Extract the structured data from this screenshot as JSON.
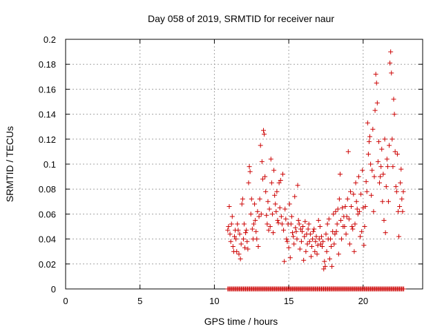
{
  "chart_data": {
    "type": "scatter",
    "title": "Day 058 of 2019, SRMTID for receiver naur",
    "xlabel": "GPS time / hours",
    "ylabel": "SRMTID / TECUs",
    "xlim": [
      0,
      24
    ],
    "ylim": [
      0,
      0.2
    ],
    "xticks": [
      0,
      5,
      10,
      15,
      20
    ],
    "xtick_labels": [
      "0",
      "5",
      "10",
      "15",
      "20"
    ],
    "yticks": [
      0,
      0.02,
      0.04,
      0.06,
      0.08,
      0.1,
      0.12,
      0.14,
      0.16,
      0.18,
      0.2
    ],
    "ytick_labels": [
      "0",
      "0.02",
      "0.04",
      "0.06",
      "0.08",
      "0.1",
      "0.12",
      "0.14",
      "0.16",
      "0.18",
      "0.2"
    ],
    "grid": true,
    "marker": "+",
    "series_color": "#cc0000",
    "series": [
      {
        "name": "SRMTID",
        "points": [
          [
            10.9,
            0.047
          ],
          [
            10.95,
            0.05
          ],
          [
            11.0,
            0.066
          ],
          [
            11.05,
            0.044
          ],
          [
            11.1,
            0.038
          ],
          [
            11.15,
            0.052
          ],
          [
            11.2,
            0.058
          ],
          [
            11.25,
            0.034
          ],
          [
            11.3,
            0.03
          ],
          [
            11.35,
            0.042
          ],
          [
            11.4,
            0.047
          ],
          [
            11.45,
            0.04
          ],
          [
            11.5,
            0.03
          ],
          [
            11.55,
            0.052
          ],
          [
            11.6,
            0.047
          ],
          [
            11.65,
            0.028
          ],
          [
            11.7,
            0.044
          ],
          [
            11.75,
            0.024
          ],
          [
            11.8,
            0.036
          ],
          [
            11.85,
            0.068
          ],
          [
            11.9,
            0.072
          ],
          [
            11.95,
            0.04
          ],
          [
            12.0,
            0.052
          ],
          [
            12.05,
            0.033
          ],
          [
            12.1,
            0.045
          ],
          [
            12.15,
            0.047
          ],
          [
            12.2,
            0.038
          ],
          [
            12.25,
            0.032
          ],
          [
            12.3,
            0.085
          ],
          [
            12.35,
            0.098
          ],
          [
            12.4,
            0.094
          ],
          [
            12.45,
            0.06
          ],
          [
            12.5,
            0.072
          ],
          [
            12.55,
            0.048
          ],
          [
            12.6,
            0.04
          ],
          [
            12.65,
            0.052
          ],
          [
            12.7,
            0.068
          ],
          [
            12.75,
            0.055
          ],
          [
            12.8,
            0.046
          ],
          [
            12.85,
            0.04
          ],
          [
            12.9,
            0.062
          ],
          [
            12.95,
            0.034
          ],
          [
            13.0,
            0.058
          ],
          [
            13.05,
            0.072
          ],
          [
            13.1,
            0.115
          ],
          [
            13.15,
            0.06
          ],
          [
            13.2,
            0.102
          ],
          [
            13.25,
            0.088
          ],
          [
            13.3,
            0.127
          ],
          [
            13.35,
            0.124
          ],
          [
            13.4,
            0.09
          ],
          [
            13.45,
            0.078
          ],
          [
            13.5,
            0.059
          ],
          [
            13.55,
            0.052
          ],
          [
            13.6,
            0.07
          ],
          [
            13.65,
            0.047
          ],
          [
            13.7,
            0.064
          ],
          [
            13.75,
            0.05
          ],
          [
            13.8,
            0.104
          ],
          [
            13.85,
            0.085
          ],
          [
            13.9,
            0.06
          ],
          [
            13.95,
            0.045
          ],
          [
            14.0,
            0.095
          ],
          [
            14.05,
            0.075
          ],
          [
            14.1,
            0.068
          ],
          [
            14.15,
            0.062
          ],
          [
            14.2,
            0.078
          ],
          [
            14.25,
            0.055
          ],
          [
            14.3,
            0.053
          ],
          [
            14.35,
            0.085
          ],
          [
            14.4,
            0.065
          ],
          [
            14.45,
            0.087
          ],
          [
            14.5,
            0.058
          ],
          [
            14.55,
            0.052
          ],
          [
            14.6,
            0.092
          ],
          [
            14.65,
            0.047
          ],
          [
            14.7,
            0.022
          ],
          [
            14.75,
            0.064
          ],
          [
            14.8,
            0.056
          ],
          [
            14.85,
            0.04
          ],
          [
            14.9,
            0.038
          ],
          [
            14.95,
            0.052
          ],
          [
            15.0,
            0.033
          ],
          [
            15.05,
            0.068
          ],
          [
            15.1,
            0.025
          ],
          [
            15.15,
            0.052
          ],
          [
            15.2,
            0.058
          ],
          [
            15.25,
            0.045
          ],
          [
            15.3,
            0.042
          ],
          [
            15.35,
            0.036
          ],
          [
            15.4,
            0.074
          ],
          [
            15.45,
            0.049
          ],
          [
            15.5,
            0.046
          ],
          [
            15.55,
            0.04
          ],
          [
            15.6,
            0.083
          ],
          [
            15.65,
            0.055
          ],
          [
            15.7,
            0.052
          ],
          [
            15.75,
            0.032
          ],
          [
            15.8,
            0.048
          ],
          [
            15.85,
            0.038
          ],
          [
            15.9,
            0.046
          ],
          [
            15.95,
            0.05
          ],
          [
            16.0,
            0.023
          ],
          [
            16.05,
            0.042
          ],
          [
            16.1,
            0.054
          ],
          [
            16.15,
            0.03
          ],
          [
            16.2,
            0.044
          ],
          [
            16.25,
            0.036
          ],
          [
            16.3,
            0.048
          ],
          [
            16.35,
            0.052
          ],
          [
            16.4,
            0.038
          ],
          [
            16.45,
            0.044
          ],
          [
            16.5,
            0.026
          ],
          [
            16.55,
            0.034
          ],
          [
            16.6,
            0.04
          ],
          [
            16.65,
            0.046
          ],
          [
            16.7,
            0.048
          ],
          [
            16.75,
            0.03
          ],
          [
            16.8,
            0.038
          ],
          [
            16.85,
            0.042
          ],
          [
            16.9,
            0.028
          ],
          [
            16.95,
            0.035
          ],
          [
            17.0,
            0.055
          ],
          [
            17.05,
            0.04
          ],
          [
            17.1,
            0.05
          ],
          [
            17.15,
            0.036
          ],
          [
            17.2,
            0.042
          ],
          [
            17.25,
            0.034
          ],
          [
            17.3,
            0.038
          ],
          [
            17.35,
            0.016
          ],
          [
            17.4,
            0.022
          ],
          [
            17.45,
            0.018
          ],
          [
            17.5,
            0.044
          ],
          [
            17.55,
            0.03
          ],
          [
            17.6,
            0.052
          ],
          [
            17.65,
            0.04
          ],
          [
            17.7,
            0.056
          ],
          [
            17.75,
            0.024
          ],
          [
            17.8,
            0.04
          ],
          [
            17.85,
            0.034
          ],
          [
            17.9,
            0.018
          ],
          [
            17.95,
            0.046
          ],
          [
            18.0,
            0.06
          ],
          [
            18.05,
            0.036
          ],
          [
            18.1,
            0.044
          ],
          [
            18.15,
            0.062
          ],
          [
            18.2,
            0.046
          ],
          [
            18.25,
            0.052
          ],
          [
            18.3,
            0.064
          ],
          [
            18.35,
            0.028
          ],
          [
            18.4,
            0.072
          ],
          [
            18.45,
            0.092
          ],
          [
            18.5,
            0.055
          ],
          [
            18.55,
            0.04
          ],
          [
            18.6,
            0.065
          ],
          [
            18.65,
            0.05
          ],
          [
            18.7,
            0.058
          ],
          [
            18.75,
            0.05
          ],
          [
            18.8,
            0.066
          ],
          [
            18.85,
            0.044
          ],
          [
            18.9,
            0.058
          ],
          [
            18.95,
            0.072
          ],
          [
            19.0,
            0.11
          ],
          [
            19.05,
            0.056
          ],
          [
            19.1,
            0.036
          ],
          [
            19.15,
            0.078
          ],
          [
            19.2,
            0.066
          ],
          [
            19.25,
            0.05
          ],
          [
            19.3,
            0.048
          ],
          [
            19.35,
            0.076
          ],
          [
            19.4,
            0.03
          ],
          [
            19.45,
            0.052
          ],
          [
            19.5,
            0.085
          ],
          [
            19.55,
            0.07
          ],
          [
            19.6,
            0.064
          ],
          [
            19.65,
            0.06
          ],
          [
            19.7,
            0.09
          ],
          [
            19.75,
            0.062
          ],
          [
            19.8,
            0.042
          ],
          [
            19.85,
            0.076
          ],
          [
            19.9,
            0.046
          ],
          [
            19.95,
            0.095
          ],
          [
            20.0,
            0.065
          ],
          [
            20.05,
            0.035
          ],
          [
            20.1,
            0.05
          ],
          [
            20.15,
            0.066
          ],
          [
            20.2,
            0.086
          ],
          [
            20.25,
            0.078
          ],
          [
            20.3,
            0.133
          ],
          [
            20.35,
            0.108
          ],
          [
            20.4,
            0.118
          ],
          [
            20.45,
            0.122
          ],
          [
            20.5,
            0.1
          ],
          [
            20.55,
            0.075
          ],
          [
            20.6,
            0.095
          ],
          [
            20.65,
            0.128
          ],
          [
            20.7,
            0.062
          ],
          [
            20.75,
            0.09
          ],
          [
            20.8,
            0.143
          ],
          [
            20.85,
            0.172
          ],
          [
            20.9,
            0.165
          ],
          [
            20.95,
            0.149
          ],
          [
            21.0,
            0.102
          ],
          [
            21.05,
            0.118
          ],
          [
            21.1,
            0.085
          ],
          [
            21.15,
            0.09
          ],
          [
            21.2,
            0.098
          ],
          [
            21.25,
            0.112
          ],
          [
            21.3,
            0.07
          ],
          [
            21.35,
            0.092
          ],
          [
            21.4,
            0.055
          ],
          [
            21.45,
            0.12
          ],
          [
            21.5,
            0.045
          ],
          [
            21.55,
            0.082
          ],
          [
            21.6,
            0.104
          ],
          [
            21.65,
            0.098
          ],
          [
            21.7,
            0.07
          ],
          [
            21.75,
            0.115
          ],
          [
            21.8,
            0.181
          ],
          [
            21.85,
            0.19
          ],
          [
            21.9,
            0.173
          ],
          [
            21.95,
            0.12
          ],
          [
            22.0,
            0.098
          ],
          [
            22.05,
            0.152
          ],
          [
            22.1,
            0.14
          ],
          [
            22.15,
            0.11
          ],
          [
            22.2,
            0.082
          ],
          [
            22.25,
            0.078
          ],
          [
            22.3,
            0.108
          ],
          [
            22.35,
            0.062
          ],
          [
            22.4,
            0.042
          ],
          [
            22.45,
            0.066
          ],
          [
            22.5,
            0.085
          ],
          [
            22.55,
            0.096
          ],
          [
            22.6,
            0.072
          ],
          [
            22.65,
            0.062
          ],
          [
            22.7,
            0.078
          ]
        ]
      }
    ],
    "zero_band": {
      "from": 10.9,
      "to": 22.75,
      "step": 0.07,
      "value": 0
    }
  }
}
